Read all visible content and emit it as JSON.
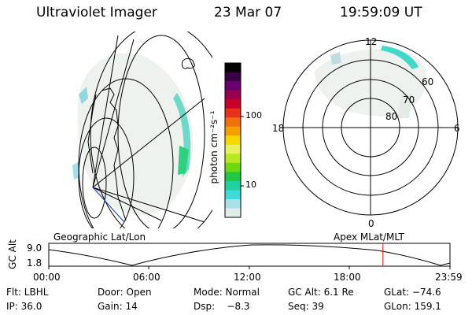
{
  "header": {
    "instrument": "Ultraviolet Imager",
    "date": "23 Mar 07",
    "time": "19:59:09 UT"
  },
  "left_panel": {
    "label": "Geographic Lat/Lon"
  },
  "right_panel": {
    "label": "Apex MLat/MLT",
    "mlt_labels": {
      "top": "12",
      "left": "18",
      "right": "6",
      "bottom": "0"
    },
    "lat_labels": [
      "60",
      "70",
      "80"
    ]
  },
  "colorbar": {
    "unit_label": "photon cm⁻²s⁻¹",
    "tick_100": "100",
    "tick_10": "10",
    "colors": [
      "#000000",
      "#3a0045",
      "#6a0070",
      "#9a0050",
      "#c8002a",
      "#e8301a",
      "#f07010",
      "#f5a000",
      "#f5d800",
      "#e8f060",
      "#b8e820",
      "#70d810",
      "#20c840",
      "#20d0a0",
      "#40d8d8",
      "#a8e0e8",
      "#e0ece8"
    ]
  },
  "timeline": {
    "y_axis_label": "GC Alt",
    "y_max": "9.0",
    "y_min": "1.8",
    "ticks": [
      "00:00",
      "06:00",
      "12:00",
      "18:00",
      "23:59"
    ],
    "current_time_fraction": 0.833,
    "marker_color": "#ff0000"
  },
  "status": {
    "filter": "Flt: LBHL",
    "door": "Door: Open",
    "mode": "Mode: Normal",
    "gc_alt": "GC Alt: 6.1 Re",
    "glat": "GLat: −74.6",
    "ip": "IP: 36.0",
    "gain": "Gain: 14",
    "dsp": "Dsp:    −8.3",
    "seq": "Seq: 39",
    "glon": "GLon: 159.1"
  }
}
